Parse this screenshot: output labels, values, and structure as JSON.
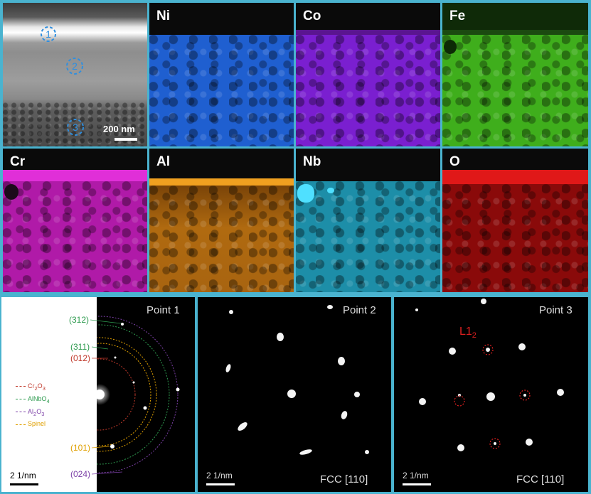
{
  "sem": {
    "scale_label": "200 nm",
    "points": [
      "1",
      "2",
      "3"
    ]
  },
  "maps": {
    "ni": {
      "label": "Ni",
      "color": "#1f5fd0"
    },
    "co": {
      "label": "Co",
      "color": "#7a1fd0"
    },
    "fe": {
      "label": "Fe",
      "color": "#3fae1c"
    },
    "cr": {
      "label": "Cr",
      "color": "#b01aa8"
    },
    "al": {
      "label": "Al",
      "color": "#b06a10"
    },
    "nb": {
      "label": "Nb",
      "color": "#1d8ea8"
    },
    "o": {
      "label": "O",
      "color": "#8a0a0a"
    }
  },
  "point1": {
    "title": "Point 1",
    "scale_label": "2 1/nm",
    "rings": [
      "(312)",
      "(311)",
      "(012)",
      "(101)",
      "(024)"
    ],
    "legend": [
      {
        "pre": "Cr",
        "sub1": "2",
        "mid": "O",
        "sub2": "3",
        "color": "#c0392b"
      },
      {
        "pre": "AlNbO",
        "sub1": "4",
        "mid": "",
        "sub2": "",
        "color": "#2e9b4f"
      },
      {
        "pre": "Al",
        "sub1": "2",
        "mid": "O",
        "sub2": "3",
        "color": "#7b3fa6"
      },
      {
        "pre": "Spinel",
        "sub1": "",
        "mid": "",
        "sub2": "",
        "color": "#e0a000"
      }
    ]
  },
  "point2": {
    "title": "Point 2",
    "scale_label": "2 1/nm",
    "zone": "FCC [110]"
  },
  "point3": {
    "title": "Point 3",
    "scale_label": "2 1/nm",
    "zone": "FCC [110]",
    "annotation": "L1",
    "annotation_sub": "2"
  }
}
